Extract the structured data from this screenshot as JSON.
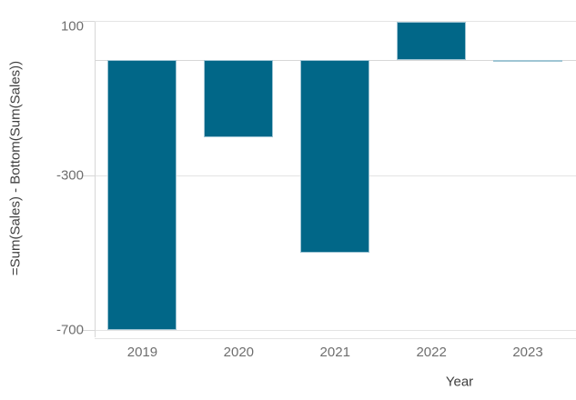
{
  "chart_data": {
    "type": "bar",
    "categories": [
      "2019",
      "2020",
      "2021",
      "2022",
      "2023"
    ],
    "values": [
      -700,
      -200,
      -500,
      100,
      -5
    ],
    "title": "",
    "xlabel": "Year",
    "ylabel": "=Sum(Sales) - Bottom(Sum(Sales))",
    "yticks": [
      100,
      -300,
      -700
    ],
    "ylim": [
      -700,
      100
    ],
    "legend": "none",
    "grid": "horizontal-only",
    "zero_baseline_shown": true,
    "colors": {
      "bar_fill": "#016788",
      "bar_stroke": "#9fc5d4",
      "gridline": "#e4e4e4",
      "axis_line": "#d7d7d7",
      "zero_line": "#d7d7d7",
      "tick_label": "#6e6e6e",
      "axis_title": "#3f3f3f"
    }
  }
}
